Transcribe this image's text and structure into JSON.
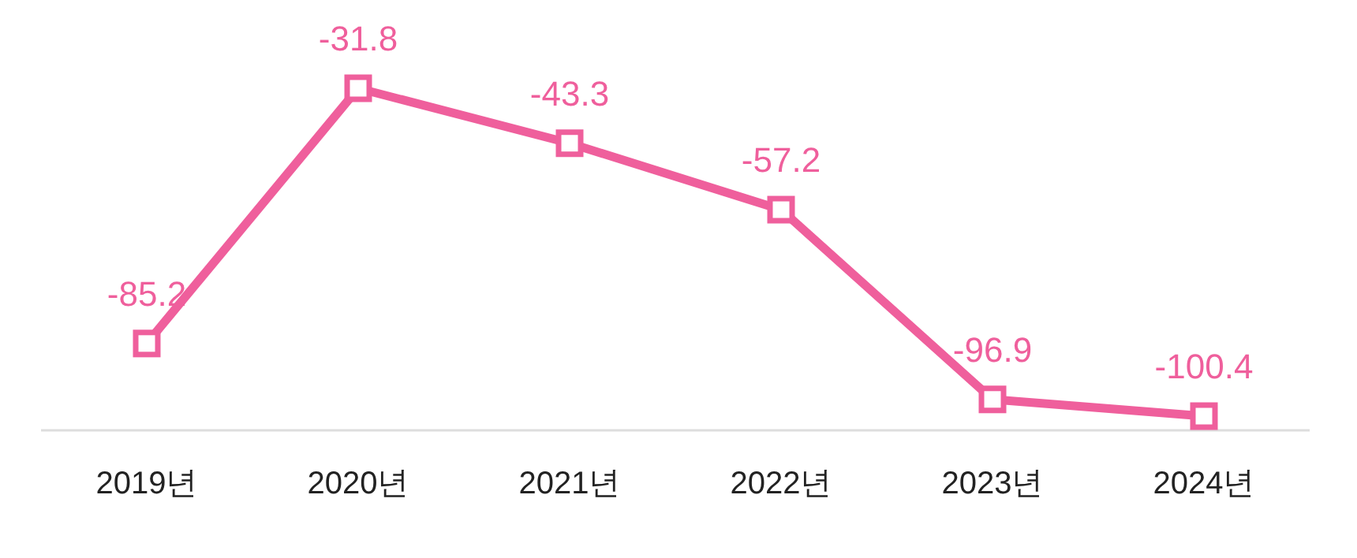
{
  "chart_data": {
    "type": "line",
    "categories": [
      "2019년",
      "2020년",
      "2021년",
      "2022년",
      "2023년",
      "2024년"
    ],
    "series": [
      {
        "color": "#ef5f9c",
        "values": [
          -85.2,
          -31.8,
          -43.3,
          -57.2,
          -96.9,
          -100.4
        ]
      }
    ],
    "data_labels": true,
    "marker": "square",
    "line_style": "solid",
    "tick_labels": "x"
  }
}
